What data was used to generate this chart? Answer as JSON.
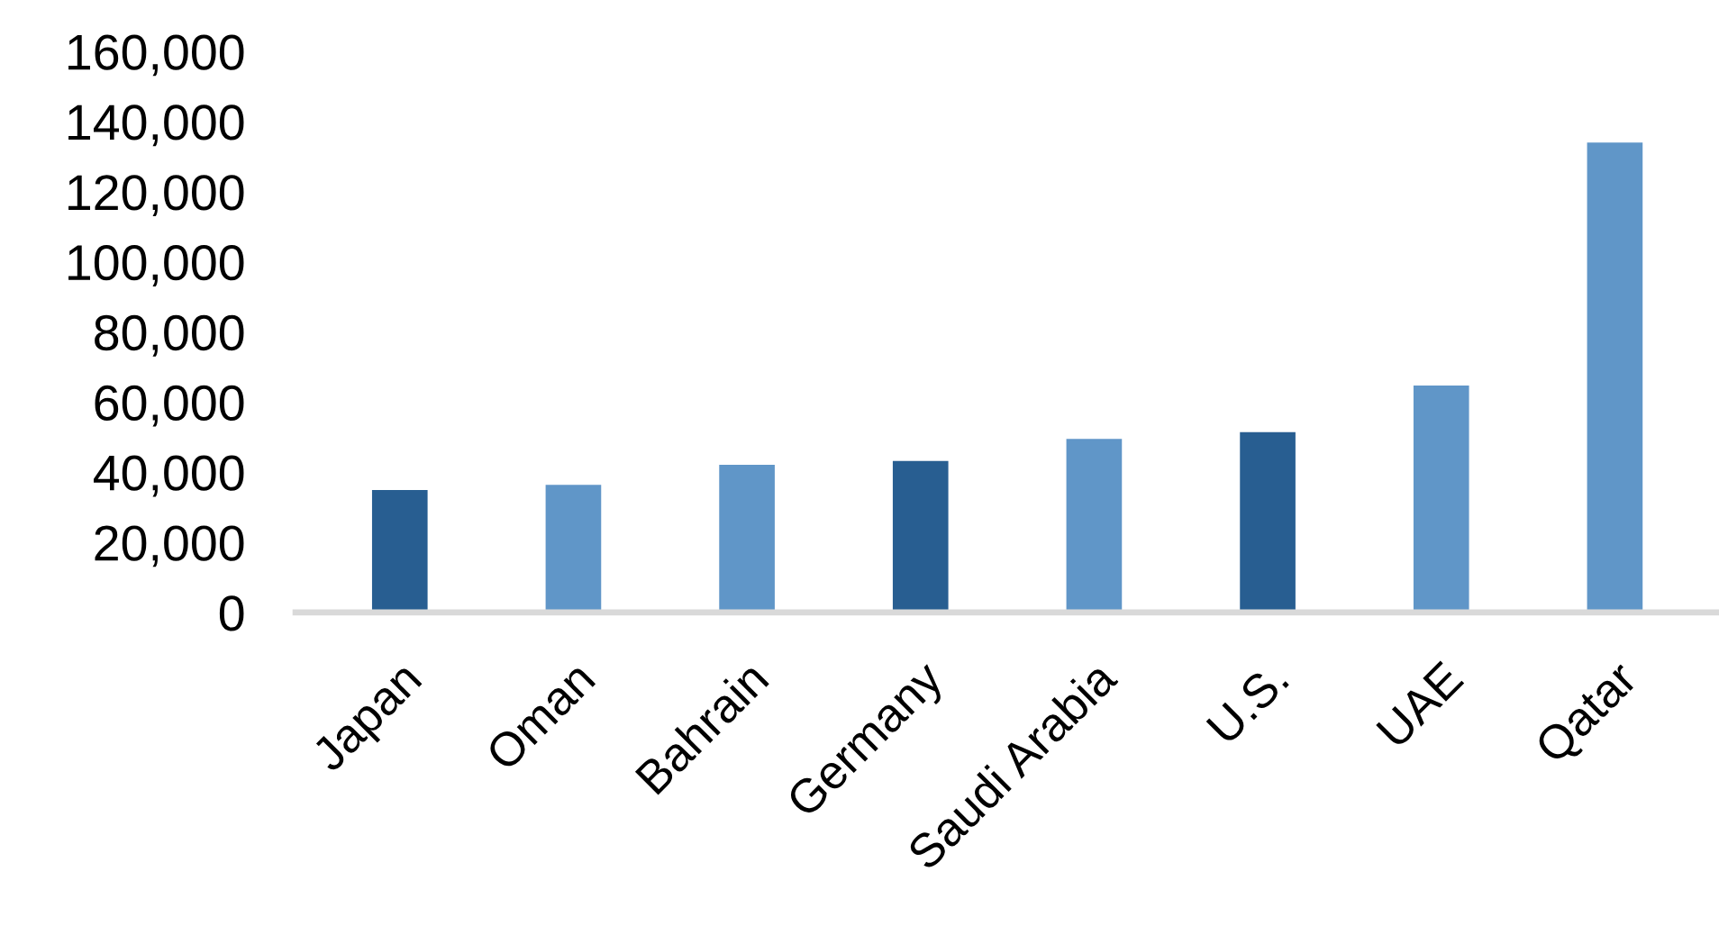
{
  "chart_data": {
    "type": "bar",
    "categories": [
      "Japan",
      "Oman",
      "Bahrain",
      "Germany",
      "Saudi Arabia",
      "U.S.",
      "UAE",
      "Qatar"
    ],
    "values": [
      34900,
      36400,
      42100,
      43200,
      49500,
      51400,
      64700,
      134000
    ],
    "colors": [
      "#285e91",
      "#6096c8",
      "#6096c8",
      "#285e91",
      "#6096c8",
      "#285e91",
      "#6096c8",
      "#6096c8"
    ],
    "ylim": [
      0,
      160000
    ],
    "yticks": [
      {
        "value": 0,
        "label": "0"
      },
      {
        "value": 20000,
        "label": "20,000"
      },
      {
        "value": 40000,
        "label": "40,000"
      },
      {
        "value": 60000,
        "label": "60,000"
      },
      {
        "value": 80000,
        "label": "80,000"
      },
      {
        "value": 100000,
        "label": "100,000"
      },
      {
        "value": 120000,
        "label": "120,000"
      },
      {
        "value": 140000,
        "label": "140,000"
      },
      {
        "value": 160000,
        "label": "160,000"
      }
    ],
    "grid": false
  }
}
